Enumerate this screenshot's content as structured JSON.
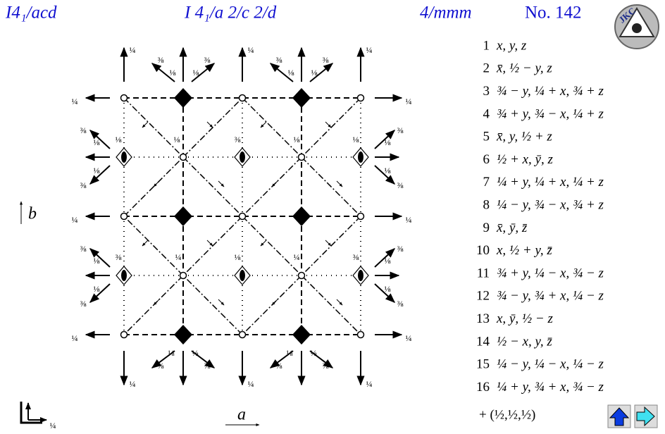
{
  "header": {
    "short_symbol": "I4₁/acd",
    "full_symbol": "I 4₁/a 2/c 2/d",
    "point_group": "4/mmm",
    "number": "No. 142",
    "logo": "JKC"
  },
  "diagram": {
    "axis_b": "b",
    "axis_a": "a",
    "origin_height": "¼",
    "top_quarters": [
      "¼",
      "¼",
      "¼"
    ],
    "bottom_quarters": [
      "¼",
      "¼",
      "¼"
    ],
    "left_quarters": [
      "¼",
      "¼",
      "¼"
    ],
    "right_quarters": [
      "¼",
      "¼",
      "¼"
    ],
    "top_oblique": [
      "⅜",
      "⅛",
      "⅛",
      "⅜",
      "⅜",
      "⅛",
      "⅛",
      "⅜"
    ],
    "bottom_oblique": [
      "⅛",
      "⅜",
      "⅛",
      "⅜",
      "⅛",
      "⅜",
      "⅛",
      "⅜"
    ],
    "left_oblique": [
      "⅜",
      "⅛",
      "⅛",
      "⅜",
      "⅜",
      "⅛",
      "⅛",
      "⅜"
    ],
    "right_oblique": [
      "⅜",
      "⅛",
      "⅛",
      "⅜",
      "⅜",
      "⅛",
      "⅛",
      "⅜"
    ],
    "row_a": [
      "⅛",
      "⅛",
      "⅜",
      "⅛",
      "⅛"
    ],
    "row_b": [
      "⅜",
      "¼",
      "⅛",
      "¼",
      "⅜"
    ]
  },
  "positions": {
    "rows": [
      {
        "n": "1",
        "op": "x, y, z"
      },
      {
        "n": "2",
        "op": "x̄, ½ − y, z"
      },
      {
        "n": "3",
        "op": "¾ − y, ¼ + x, ¾ + z"
      },
      {
        "n": "4",
        "op": "¾ + y, ¾ − x, ¼ + z"
      },
      {
        "n": "5",
        "op": "x̄, y, ½ + z"
      },
      {
        "n": "6",
        "op": "½ + x, ȳ, z"
      },
      {
        "n": "7",
        "op": "¼ + y, ¼ + x, ¼ + z"
      },
      {
        "n": "8",
        "op": "¼ − y, ¾ − x, ¾ + z"
      },
      {
        "n": "9",
        "op": "x̄, ȳ, z̄"
      },
      {
        "n": "10",
        "op": "x, ½ + y, z̄"
      },
      {
        "n": "11",
        "op": "¾ + y, ¼ − x, ¾ − z"
      },
      {
        "n": "12",
        "op": "¾ − y, ¾ + x, ¼ − z"
      },
      {
        "n": "13",
        "op": "x, ȳ, ½ − z"
      },
      {
        "n": "14",
        "op": "½ − x, y, z̄"
      },
      {
        "n": "15",
        "op": "¼ − y, ¼ − x, ¼ − z"
      },
      {
        "n": "16",
        "op": "¼ + y, ¾ + x, ¾ − z"
      }
    ],
    "centering": "+ (½,½,½)"
  }
}
